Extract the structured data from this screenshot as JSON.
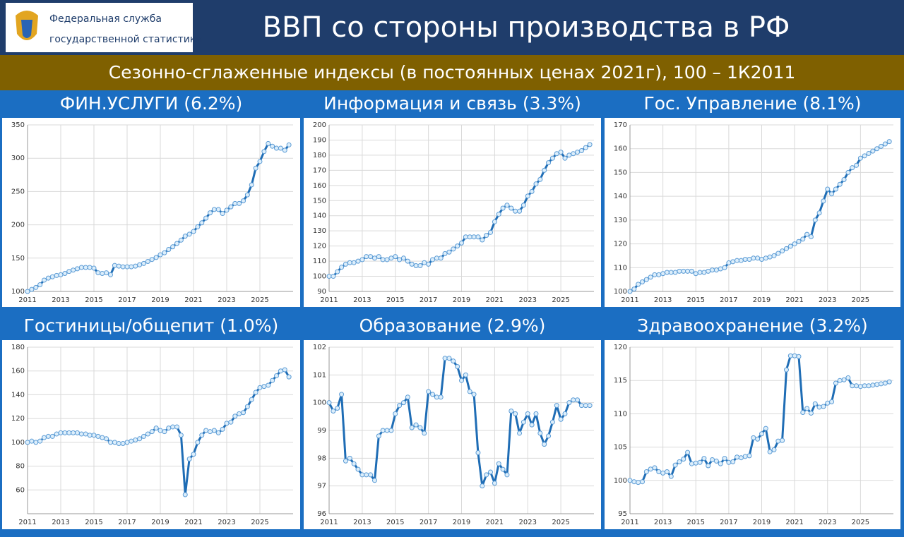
{
  "header": {
    "logo_line1": "Федеральная служба",
    "logo_line2": "государственной статистики",
    "title": "ВВП со стороны производства в РФ"
  },
  "subtitle": "Сезонно-сглаженные индексы (в постоянных ценах 2021г), 100 – 1К2011",
  "chart_data": [
    {
      "type": "line",
      "title": "ФИН.УСЛУГИ (6.2%)",
      "color": "#1f6db5",
      "x": [
        2011,
        2011.25,
        2011.5,
        2011.75,
        2012,
        2012.25,
        2012.5,
        2012.75,
        2013,
        2013.25,
        2013.5,
        2013.75,
        2014,
        2014.25,
        2014.5,
        2014.75,
        2015,
        2015.25,
        2015.5,
        2015.75,
        2016,
        2016.25,
        2016.5,
        2016.75,
        2017,
        2017.25,
        2017.5,
        2017.75,
        2018,
        2018.25,
        2018.5,
        2018.75,
        2019,
        2019.25,
        2019.5,
        2019.75,
        2020,
        2020.25,
        2020.5,
        2020.75,
        2021,
        2021.25,
        2021.5,
        2021.75,
        2022,
        2022.25,
        2022.5,
        2022.75,
        2023,
        2023.25,
        2023.5,
        2023.75,
        2024,
        2024.25,
        2024.5,
        2024.75,
        2025,
        2025.25,
        2025.5,
        2025.75,
        2026,
        2026.25,
        2026.5,
        2026.75
      ],
      "values": [
        100,
        103,
        106,
        110,
        117,
        120,
        122,
        124,
        125,
        127,
        130,
        132,
        134,
        136,
        136,
        136,
        135,
        128,
        127,
        128,
        125,
        139,
        138,
        137,
        137,
        137,
        138,
        140,
        142,
        145,
        148,
        151,
        155,
        158,
        163,
        167,
        172,
        177,
        183,
        186,
        190,
        197,
        203,
        210,
        218,
        223,
        223,
        217,
        222,
        227,
        232,
        232,
        236,
        245,
        260,
        285,
        295,
        310,
        322,
        318,
        315,
        315,
        312,
        320
      ],
      "xlim": [
        2011,
        2027
      ],
      "xticks": [
        2011,
        2013,
        2015,
        2017,
        2019,
        2021,
        2023,
        2025
      ],
      "ylim": [
        100,
        350
      ],
      "yticks": [
        100,
        150,
        200,
        250,
        300,
        350
      ],
      "grid": true
    },
    {
      "type": "line",
      "title": "Информация и связь (3.3%)",
      "color": "#1f6db5",
      "x": [
        2011,
        2011.25,
        2011.5,
        2011.75,
        2012,
        2012.25,
        2012.5,
        2012.75,
        2013,
        2013.25,
        2013.5,
        2013.75,
        2014,
        2014.25,
        2014.5,
        2014.75,
        2015,
        2015.25,
        2015.5,
        2015.75,
        2016,
        2016.25,
        2016.5,
        2016.75,
        2017,
        2017.25,
        2017.5,
        2017.75,
        2018,
        2018.25,
        2018.5,
        2018.75,
        2019,
        2019.25,
        2019.5,
        2019.75,
        2020,
        2020.25,
        2020.5,
        2020.75,
        2021,
        2021.25,
        2021.5,
        2021.75,
        2022,
        2022.25,
        2022.5,
        2022.75,
        2023,
        2023.25,
        2023.5,
        2023.75,
        2024,
        2024.25,
        2024.5,
        2024.75,
        2025,
        2025.25,
        2025.5,
        2025.75,
        2026,
        2026.25,
        2026.5,
        2026.75
      ],
      "values": [
        100,
        100,
        103,
        106,
        108,
        109,
        109,
        110,
        111,
        113,
        113,
        112,
        113,
        111,
        111,
        112,
        113,
        111,
        112,
        110,
        108,
        107,
        107,
        109,
        108,
        111,
        112,
        112,
        115,
        116,
        118,
        120,
        122,
        126,
        126,
        126,
        126,
        124,
        127,
        129,
        136,
        141,
        145,
        147,
        145,
        143,
        143,
        147,
        153,
        156,
        161,
        164,
        170,
        175,
        178,
        181,
        182,
        178,
        180,
        181,
        182,
        183,
        185,
        187
      ],
      "xlim": [
        2011,
        2027
      ],
      "xticks": [
        2011,
        2013,
        2015,
        2017,
        2019,
        2021,
        2023,
        2025
      ],
      "ylim": [
        90,
        200
      ],
      "yticks": [
        90,
        100,
        110,
        120,
        130,
        140,
        150,
        160,
        170,
        180,
        190,
        200
      ],
      "grid": true
    },
    {
      "type": "line",
      "title": "Гос. Управление (8.1%)",
      "color": "#1f6db5",
      "x": [
        2011,
        2011.25,
        2011.5,
        2011.75,
        2012,
        2012.25,
        2012.5,
        2012.75,
        2013,
        2013.25,
        2013.5,
        2013.75,
        2014,
        2014.25,
        2014.5,
        2014.75,
        2015,
        2015.25,
        2015.5,
        2015.75,
        2016,
        2016.25,
        2016.5,
        2016.75,
        2017,
        2017.25,
        2017.5,
        2017.75,
        2018,
        2018.25,
        2018.5,
        2018.75,
        2019,
        2019.25,
        2019.5,
        2019.75,
        2020,
        2020.25,
        2020.5,
        2020.75,
        2021,
        2021.25,
        2021.5,
        2021.75,
        2022,
        2022.25,
        2022.5,
        2022.75,
        2023,
        2023.25,
        2023.5,
        2023.75,
        2024,
        2024.25,
        2024.5,
        2024.75,
        2025,
        2025.25,
        2025.5,
        2025.75,
        2026,
        2026.25,
        2026.5,
        2026.75
      ],
      "values": [
        100,
        101,
        103,
        104,
        105,
        106,
        107,
        107,
        107.5,
        108,
        108,
        108,
        108.5,
        108.5,
        108.5,
        108.5,
        107.5,
        108,
        108,
        108.5,
        109,
        109,
        109.5,
        110,
        112,
        112.5,
        113,
        113,
        113.5,
        113.5,
        114,
        114,
        113.5,
        114,
        114.5,
        115,
        116,
        117,
        118,
        119,
        120,
        121,
        122,
        124,
        123,
        130,
        133,
        138,
        143,
        141,
        143,
        145,
        147,
        150,
        152,
        153,
        156,
        157,
        158,
        159,
        160,
        161,
        162,
        163
      ],
      "xlim": [
        2011,
        2027
      ],
      "xticks": [
        2011,
        2013,
        2015,
        2017,
        2019,
        2021,
        2023,
        2025
      ],
      "ylim": [
        100,
        170
      ],
      "yticks": [
        100,
        110,
        120,
        130,
        140,
        150,
        160,
        170
      ],
      "grid": true
    },
    {
      "type": "line",
      "title": "Гостиницы/общепит (1.0%)",
      "color": "#1f6db5",
      "x": [
        2011,
        2011.25,
        2011.5,
        2011.75,
        2012,
        2012.25,
        2012.5,
        2012.75,
        2013,
        2013.25,
        2013.5,
        2013.75,
        2014,
        2014.25,
        2014.5,
        2014.75,
        2015,
        2015.25,
        2015.5,
        2015.75,
        2016,
        2016.25,
        2016.5,
        2016.75,
        2017,
        2017.25,
        2017.5,
        2017.75,
        2018,
        2018.25,
        2018.5,
        2018.75,
        2019,
        2019.25,
        2019.5,
        2019.75,
        2020,
        2020.25,
        2020.5,
        2020.75,
        2021,
        2021.25,
        2021.5,
        2021.75,
        2022,
        2022.25,
        2022.5,
        2022.75,
        2023,
        2023.25,
        2023.5,
        2023.75,
        2024,
        2024.25,
        2024.5,
        2024.75,
        2025,
        2025.25,
        2025.5,
        2025.75,
        2026,
        2026.25,
        2026.5,
        2026.75
      ],
      "values": [
        100,
        101,
        100,
        101,
        104,
        105,
        105,
        107,
        108,
        108,
        108,
        108,
        108,
        107,
        107,
        106,
        106,
        105,
        104,
        103,
        100,
        100,
        99,
        99,
        100,
        101,
        102,
        103,
        105,
        107,
        109,
        112,
        110,
        109,
        112,
        113,
        113,
        106,
        56,
        86,
        90,
        100,
        106,
        110,
        109,
        110,
        108,
        111,
        116,
        117,
        122,
        124,
        125,
        130,
        136,
        142,
        146,
        147,
        148,
        152,
        156,
        160,
        161,
        155
      ],
      "xlim": [
        2011,
        2027
      ],
      "xticks": [
        2011,
        2013,
        2015,
        2017,
        2019,
        2021,
        2023,
        2025
      ],
      "ylim": [
        40,
        180
      ],
      "yticks": [
        60,
        80,
        100,
        120,
        140,
        160,
        180
      ],
      "grid": true
    },
    {
      "type": "line",
      "title": "Образование (2.9%)",
      "color": "#1f6db5",
      "x": [
        2011,
        2011.25,
        2011.5,
        2011.75,
        2012,
        2012.25,
        2012.5,
        2012.75,
        2013,
        2013.25,
        2013.5,
        2013.75,
        2014,
        2014.25,
        2014.5,
        2014.75,
        2015,
        2015.25,
        2015.5,
        2015.75,
        2016,
        2016.25,
        2016.5,
        2016.75,
        2017,
        2017.25,
        2017.5,
        2017.75,
        2018,
        2018.25,
        2018.5,
        2018.75,
        2019,
        2019.25,
        2019.5,
        2019.75,
        2020,
        2020.25,
        2020.5,
        2020.75,
        2021,
        2021.25,
        2021.5,
        2021.75,
        2022,
        2022.25,
        2022.5,
        2022.75,
        2023,
        2023.25,
        2023.5,
        2023.75,
        2024,
        2024.25,
        2024.5,
        2024.75,
        2025,
        2025.25,
        2025.5,
        2025.75,
        2026,
        2026.25,
        2026.5,
        2026.75
      ],
      "values": [
        100,
        99.7,
        99.8,
        100.3,
        97.9,
        98.0,
        97.8,
        97.6,
        97.4,
        97.4,
        97.4,
        97.2,
        98.8,
        99.0,
        99.0,
        99.0,
        99.6,
        99.9,
        100.0,
        100.2,
        99.1,
        99.2,
        99.1,
        98.9,
        100.4,
        100.3,
        100.2,
        100.2,
        101.6,
        101.6,
        101.5,
        101.3,
        100.8,
        101.0,
        100.4,
        100.3,
        98.2,
        97.0,
        97.4,
        97.5,
        97.1,
        97.8,
        97.6,
        97.4,
        99.7,
        99.6,
        98.9,
        99.3,
        99.6,
        99.2,
        99.6,
        98.9,
        98.5,
        98.8,
        99.3,
        99.9,
        99.4,
        99.6,
        100.0,
        100.1,
        100.1,
        99.9,
        99.9,
        99.9
      ],
      "xlim": [
        2011,
        2027
      ],
      "xticks": [
        2011,
        2013,
        2015,
        2017,
        2019,
        2021,
        2023,
        2025
      ],
      "ylim": [
        96,
        102
      ],
      "yticks": [
        96,
        97,
        98,
        99,
        100,
        101,
        102
      ],
      "grid": true
    },
    {
      "type": "line",
      "title": "Здравоохранение (3.2%)",
      "color": "#1f6db5",
      "x": [
        2011,
        2011.25,
        2011.5,
        2011.75,
        2012,
        2012.25,
        2012.5,
        2012.75,
        2013,
        2013.25,
        2013.5,
        2013.75,
        2014,
        2014.25,
        2014.5,
        2014.75,
        2015,
        2015.25,
        2015.5,
        2015.75,
        2016,
        2016.25,
        2016.5,
        2016.75,
        2017,
        2017.25,
        2017.5,
        2017.75,
        2018,
        2018.25,
        2018.5,
        2018.75,
        2019,
        2019.25,
        2019.5,
        2019.75,
        2020,
        2020.25,
        2020.5,
        2020.75,
        2021,
        2021.25,
        2021.5,
        2021.75,
        2022,
        2022.25,
        2022.5,
        2022.75,
        2023,
        2023.25,
        2023.5,
        2023.75,
        2024,
        2024.25,
        2024.5,
        2024.75,
        2025,
        2025.25,
        2025.5,
        2025.75,
        2026,
        2026.25,
        2026.5,
        2026.75
      ],
      "values": [
        100,
        99.8,
        99.7,
        99.8,
        101.3,
        101.7,
        101.9,
        101.3,
        101.1,
        101.3,
        100.6,
        102.3,
        102.8,
        103.2,
        104.2,
        102.5,
        102.6,
        102.7,
        103.3,
        102.2,
        103.1,
        102.9,
        102.5,
        103.3,
        102.7,
        102.8,
        103.5,
        103.4,
        103.6,
        103.7,
        106.4,
        106.2,
        107.0,
        107.8,
        104.3,
        104.6,
        105.9,
        106.0,
        116.6,
        118.7,
        118.7,
        118.6,
        110.2,
        110.8,
        110.1,
        111.5,
        111.0,
        111.1,
        111.6,
        111.8,
        114.6,
        115.0,
        115.1,
        115.4,
        114.2,
        114.2,
        114.1,
        114.2,
        114.2,
        114.3,
        114.4,
        114.5,
        114.6,
        114.8
      ],
      "xlim": [
        2011,
        2027
      ],
      "xticks": [
        2011,
        2013,
        2015,
        2017,
        2019,
        2021,
        2023,
        2025
      ],
      "ylim": [
        95,
        120
      ],
      "yticks": [
        95,
        100,
        105,
        110,
        115,
        120
      ],
      "grid": true
    }
  ]
}
